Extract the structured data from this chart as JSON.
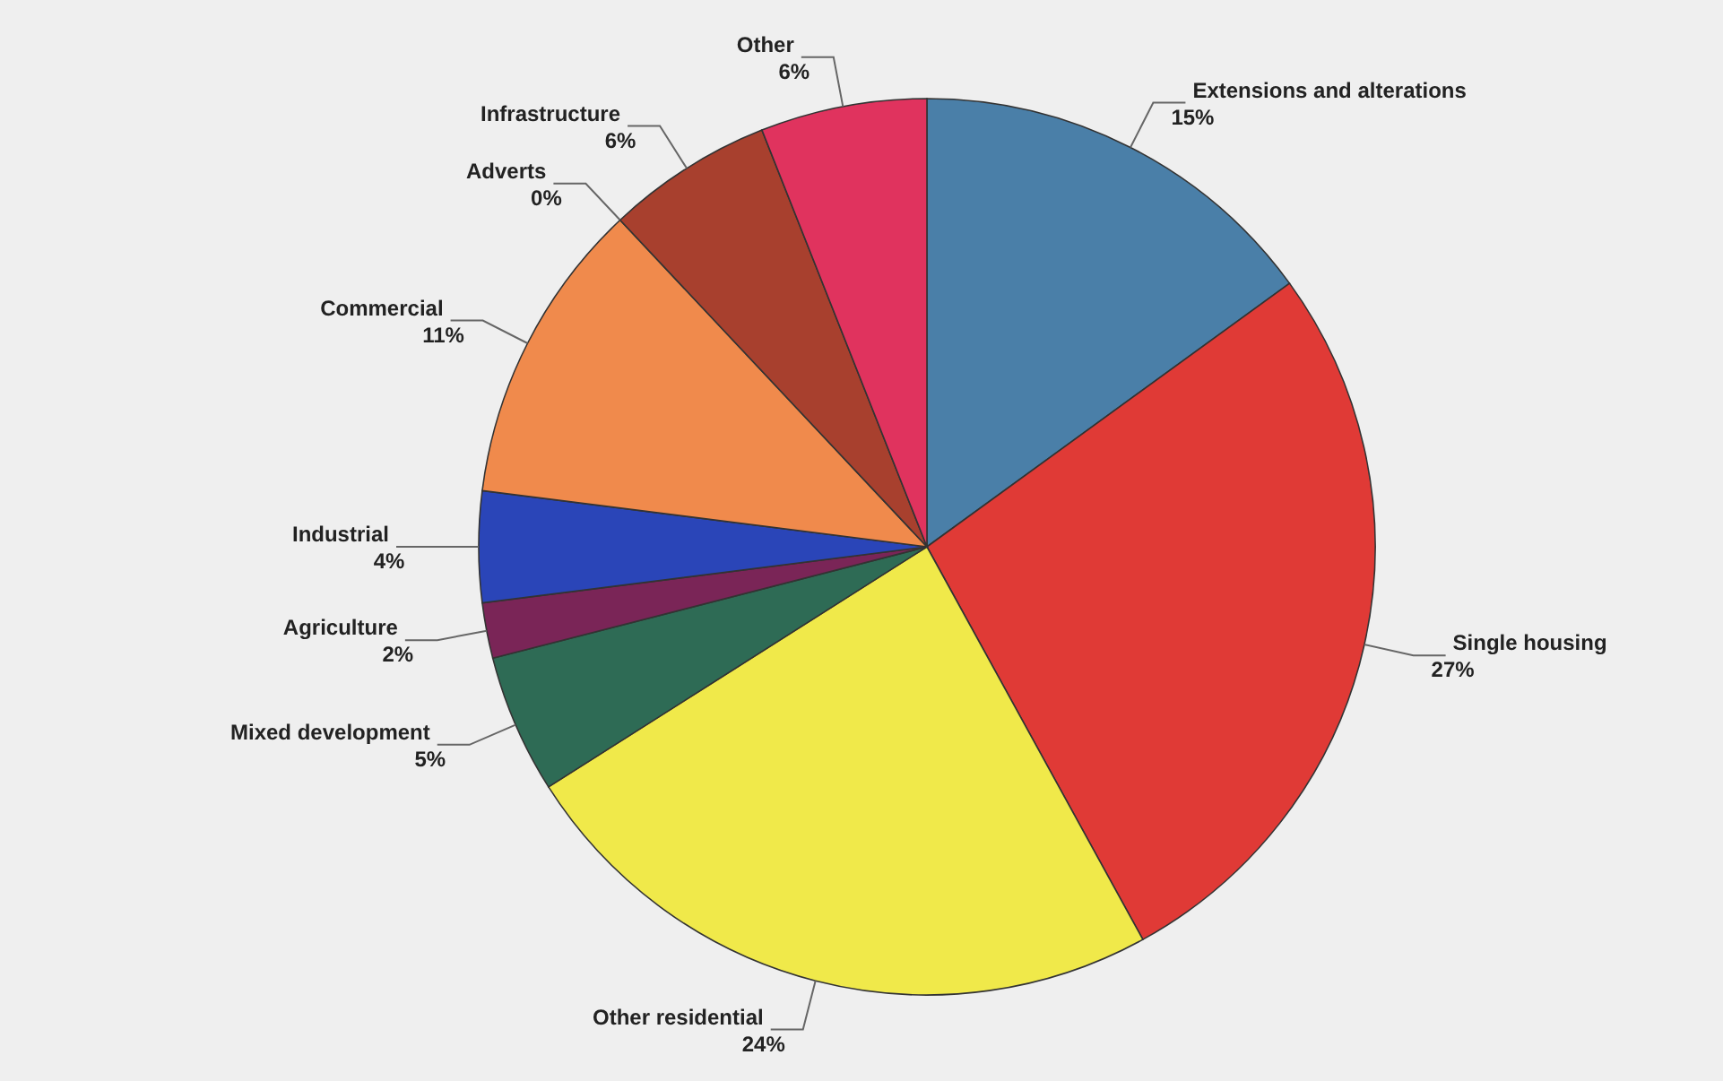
{
  "chart_data": {
    "type": "pie",
    "categories": [
      "Extensions and alterations",
      "Single housing",
      "Other residential",
      "Mixed development",
      "Agriculture",
      "Industrial",
      "Commercial",
      "Adverts",
      "Infrastructure",
      "Other"
    ],
    "values": [
      15,
      27,
      24,
      5,
      2,
      4,
      11,
      0,
      6,
      6
    ],
    "value_labels": [
      "15%",
      "27%",
      "24%",
      "5%",
      "2%",
      "4%",
      "11%",
      "0%",
      "6%",
      "6%"
    ],
    "colors": [
      "#4a7fa8",
      "#e03a36",
      "#f0e94a",
      "#2e6b55",
      "#7a2557",
      "#2a45b8",
      "#f08a4c",
      null,
      "#a8402e",
      "#e0335e"
    ]
  }
}
